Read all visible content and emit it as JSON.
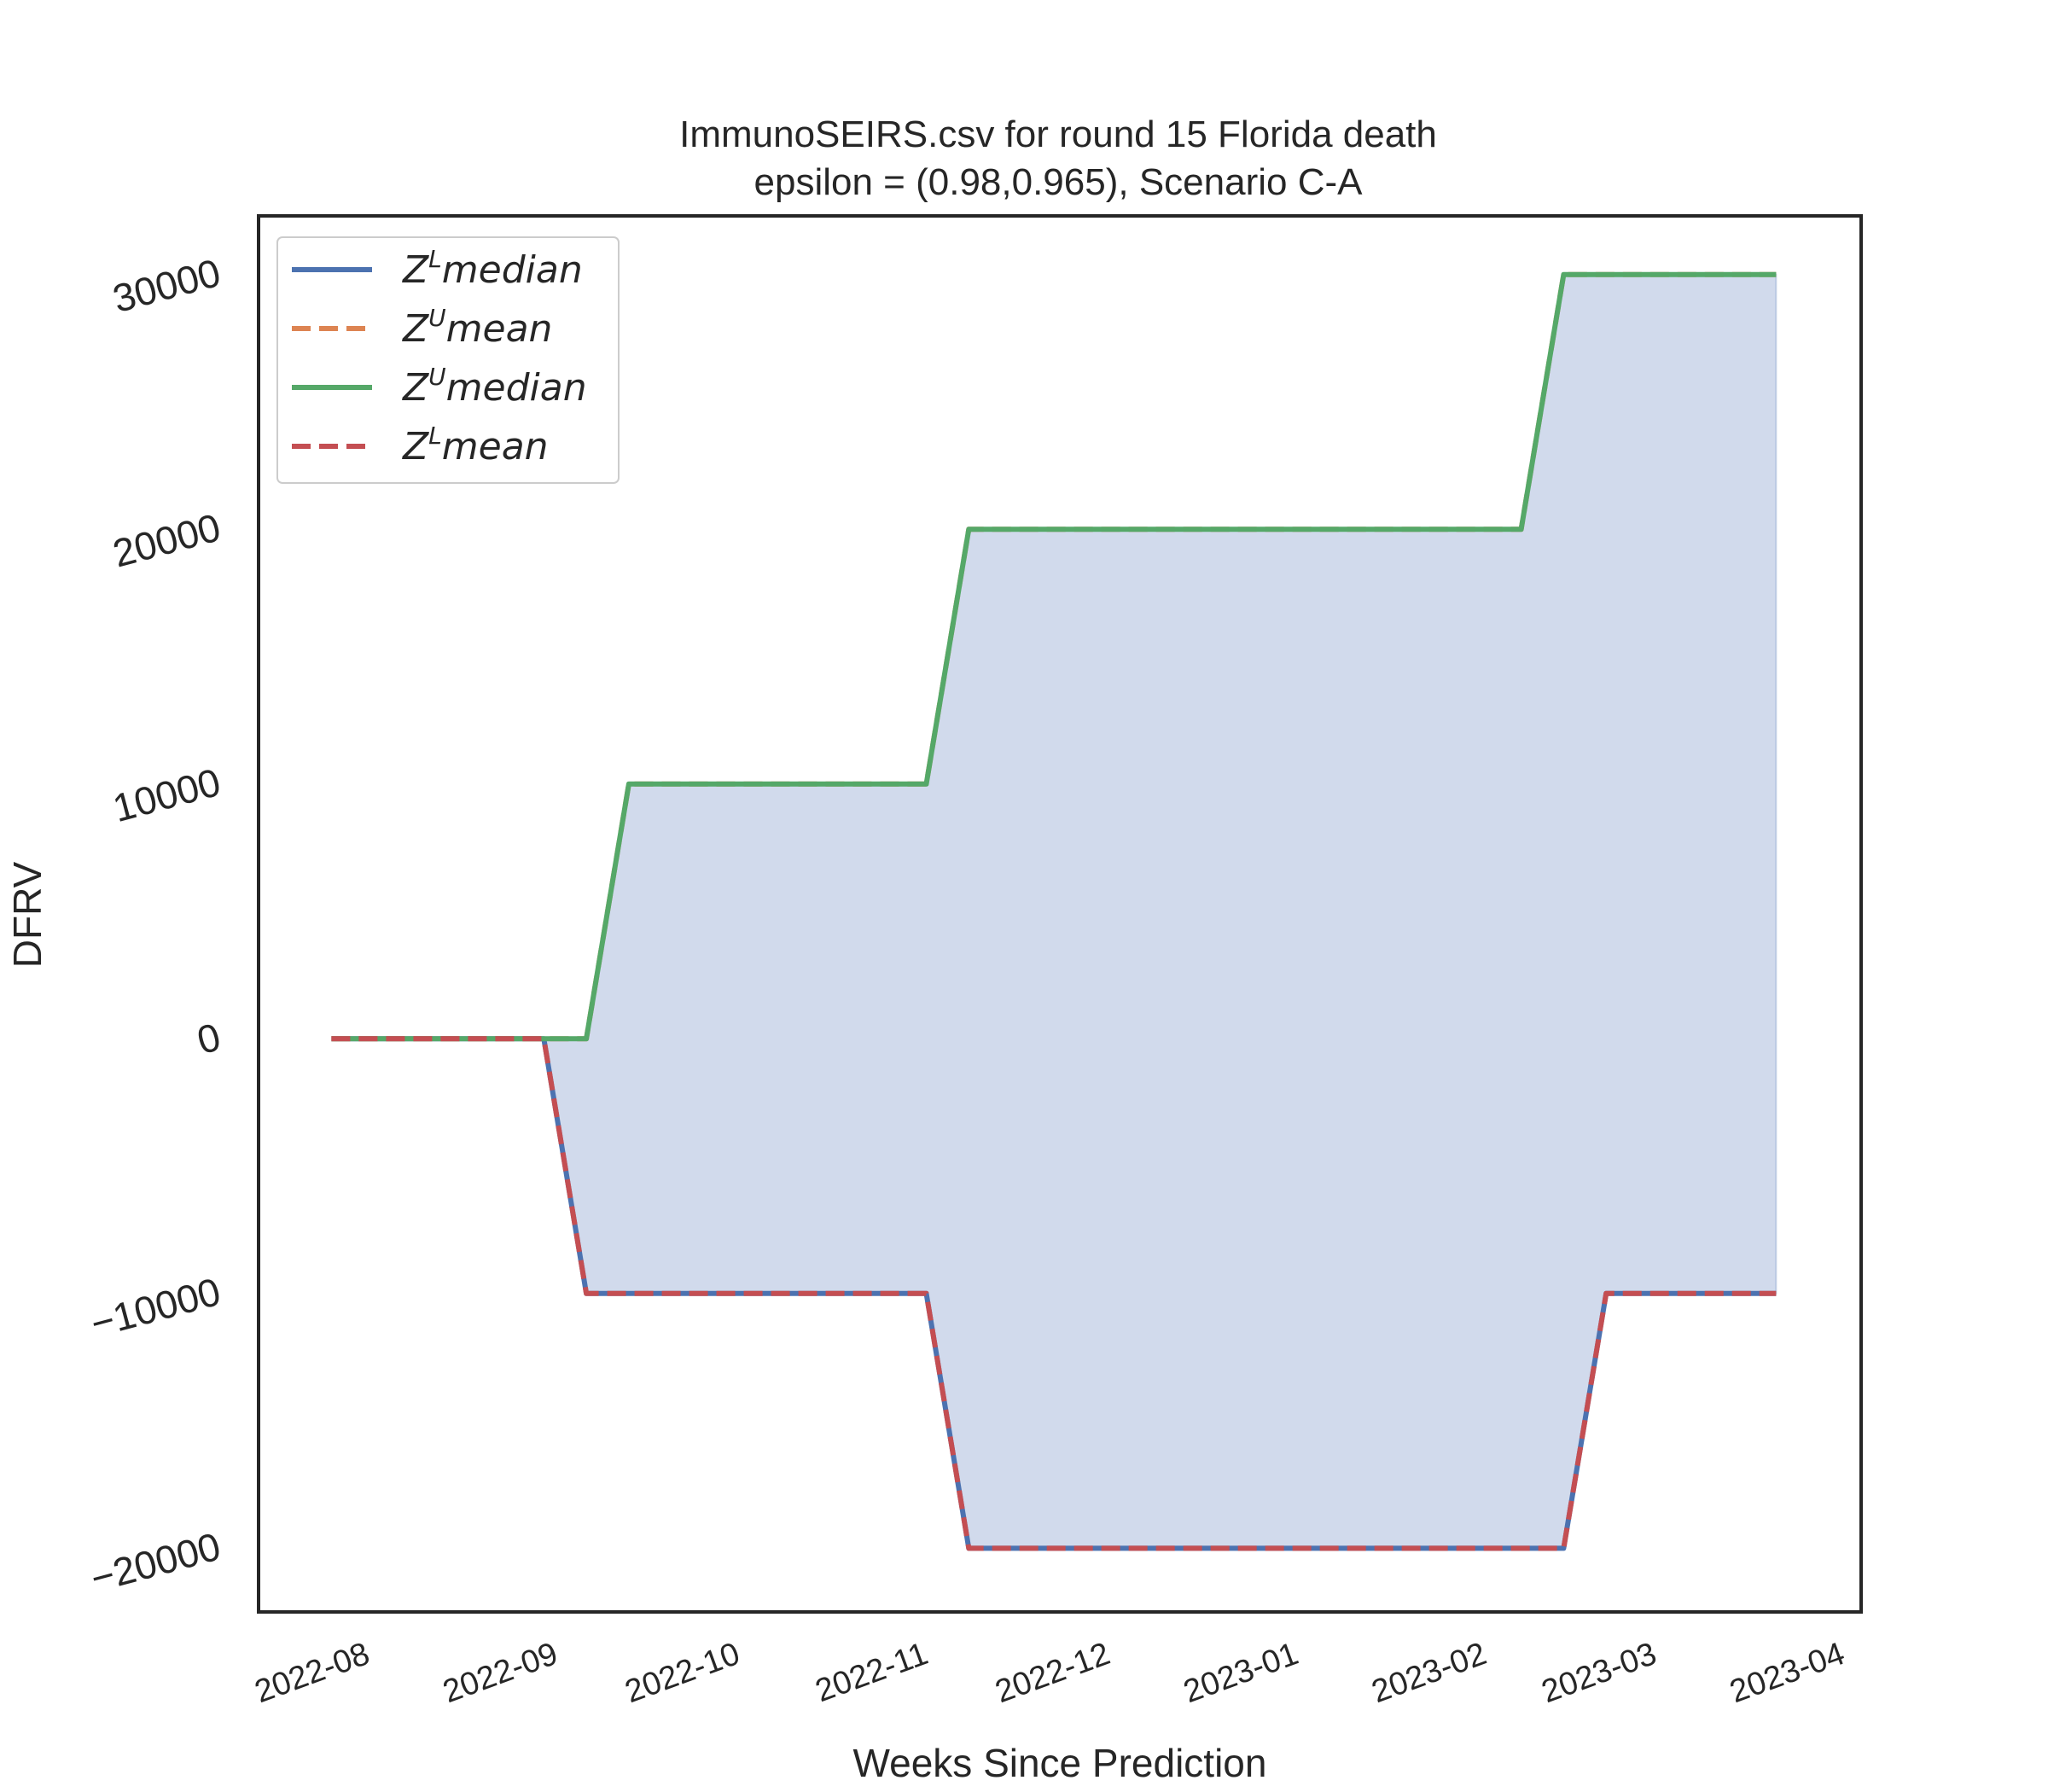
{
  "chart_data": {
    "type": "line",
    "title_line1": "ImmunoSEIRS.csv for round 15 Florida  death",
    "title_line2": "epsilon = (0.98,0.965), Scenario C-A",
    "xlabel": "Weeks Since Prediction",
    "ylabel": "DFRV",
    "x_type": "date",
    "xlim": [
      "2022-07-19",
      "2023-04-09"
    ],
    "ylim": [
      -22500,
      32300
    ],
    "xticks": [
      "2022-08-01",
      "2022-09-01",
      "2022-10-01",
      "2022-11-01",
      "2022-12-01",
      "2023-01-01",
      "2023-02-01",
      "2023-03-01",
      "2023-04-01"
    ],
    "xtick_labels": [
      "2022-08",
      "2022-09",
      "2022-10",
      "2022-11",
      "2022-12",
      "2023-01",
      "2023-02",
      "2023-03",
      "2023-04"
    ],
    "yticks": [
      -20000,
      -10000,
      0,
      10000,
      20000,
      30000
    ],
    "ytick_labels": [
      "−20000",
      "−10000",
      "0",
      "10000",
      "20000",
      "30000"
    ],
    "x": [
      "2022-07-31",
      "2022-08-07",
      "2022-08-14",
      "2022-08-21",
      "2022-08-28",
      "2022-09-04",
      "2022-09-11",
      "2022-09-18",
      "2022-09-25",
      "2022-10-02",
      "2022-10-09",
      "2022-10-16",
      "2022-10-23",
      "2022-10-30",
      "2022-11-06",
      "2022-11-13",
      "2022-11-20",
      "2022-11-27",
      "2022-12-04",
      "2022-12-11",
      "2022-12-18",
      "2022-12-25",
      "2023-01-01",
      "2023-01-08",
      "2023-01-15",
      "2023-01-22",
      "2023-01-29",
      "2023-02-05",
      "2023-02-12",
      "2023-02-19",
      "2023-02-26",
      "2023-03-05",
      "2023-03-12",
      "2023-03-19",
      "2023-03-26"
    ],
    "series": [
      {
        "name_base": "Z",
        "name_sup": "L",
        "name_rest": "median",
        "color": "#4c72b0",
        "dash": "solid",
        "values": [
          0,
          0,
          0,
          0,
          0,
          0,
          -10000,
          -10000,
          -10000,
          -10000,
          -10000,
          -10000,
          -10000,
          -10000,
          -10000,
          -20000,
          -20000,
          -20000,
          -20000,
          -20000,
          -20000,
          -20000,
          -20000,
          -20000,
          -20000,
          -20000,
          -20000,
          -20000,
          -20000,
          -20000,
          -10000,
          -10000,
          -10000,
          -10000,
          -10000
        ]
      },
      {
        "name_base": "Z",
        "name_sup": "U",
        "name_rest": "mean",
        "color": "#dd8452",
        "dash": "dashed",
        "values": [
          0,
          0,
          0,
          0,
          0,
          0,
          0,
          10000,
          10000,
          10000,
          10000,
          10000,
          10000,
          10000,
          10000,
          20000,
          20000,
          20000,
          20000,
          20000,
          20000,
          20000,
          20000,
          20000,
          20000,
          20000,
          20000,
          20000,
          20000,
          30000,
          30000,
          30000,
          30000,
          30000,
          30000
        ]
      },
      {
        "name_base": "Z",
        "name_sup": "U",
        "name_rest": "median",
        "color": "#55a868",
        "dash": "solid",
        "values": [
          0,
          0,
          0,
          0,
          0,
          0,
          0,
          10000,
          10000,
          10000,
          10000,
          10000,
          10000,
          10000,
          10000,
          20000,
          20000,
          20000,
          20000,
          20000,
          20000,
          20000,
          20000,
          20000,
          20000,
          20000,
          20000,
          20000,
          20000,
          30000,
          30000,
          30000,
          30000,
          30000,
          30000
        ]
      },
      {
        "name_base": "Z",
        "name_sup": "L",
        "name_rest": "mean",
        "color": "#c44e52",
        "dash": "dashed",
        "values": [
          0,
          0,
          0,
          0,
          0,
          0,
          -10000,
          -10000,
          -10000,
          -10000,
          -10000,
          -10000,
          -10000,
          -10000,
          -10000,
          -20000,
          -20000,
          -20000,
          -20000,
          -20000,
          -20000,
          -20000,
          -20000,
          -20000,
          -20000,
          -20000,
          -20000,
          -20000,
          -20000,
          -20000,
          -10000,
          -10000,
          -10000,
          -10000,
          -10000
        ]
      }
    ],
    "fill_between": {
      "lower_series": 0,
      "upper_series": 2,
      "color": "#a3b6d9"
    },
    "legend_position": "top-left",
    "grid": false
  }
}
